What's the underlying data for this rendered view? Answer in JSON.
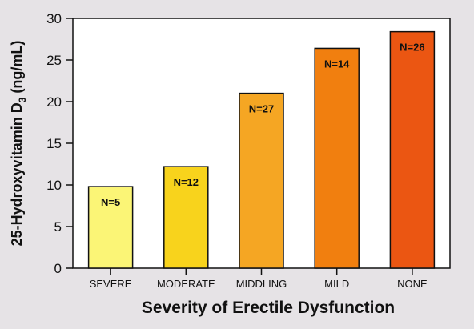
{
  "chart_data": {
    "type": "bar",
    "title": "",
    "xlabel": "Severity of Erectile Dysfunction",
    "ylabel": {
      "prefix": "25-Hydroxyvitamin D",
      "subscript": "3",
      "suffix": " (ng/mL)"
    },
    "ylim": [
      0,
      30
    ],
    "yticks": [
      "0",
      "5",
      "10",
      "15",
      "20",
      "25",
      "30"
    ],
    "categories": [
      "SEVERE",
      "MODERATE",
      "MIDDLING",
      "MILD",
      "NONE"
    ],
    "values": [
      9.8,
      12.2,
      21.0,
      26.4,
      28.4
    ],
    "data_labels": [
      "N=5",
      "N=12",
      "N=27",
      "N=14",
      "N=26"
    ],
    "colors": [
      "#fbf576",
      "#f8d31c",
      "#f5a623",
      "#f17f0f",
      "#eb5612"
    ],
    "grid": false,
    "legend": "none"
  },
  "colors": {
    "background": "#e6e3e6",
    "plot_background": "#ffffff",
    "axis": "#111111"
  }
}
